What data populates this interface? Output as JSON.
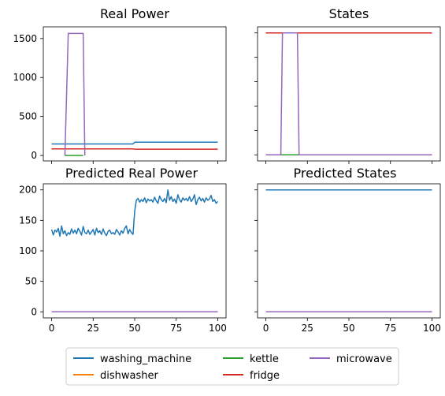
{
  "colors": {
    "washing_machine": "#1f77b4",
    "dishwasher": "#ff7f0e",
    "kettle": "#2ca02c",
    "fridge": "#d62728",
    "microwave": "#9467bd"
  },
  "legend": {
    "position": "bottom-center",
    "entries": [
      "washing_machine",
      "dishwasher",
      "kettle",
      "fridge",
      "microwave"
    ]
  },
  "chart_data": [
    {
      "id": "real_power",
      "type": "line",
      "title": "Real Power",
      "xlim": [
        -5,
        105
      ],
      "ylim": [
        -70,
        1650
      ],
      "xticks": [
        0,
        25,
        50,
        75,
        100
      ],
      "show_xtick_labels": false,
      "yticks": [
        0,
        500,
        1000,
        1500
      ],
      "show_ytick_labels": true,
      "grid": false,
      "series": [
        {
          "name": "washing_machine",
          "x": [
            0,
            49,
            50,
            100
          ],
          "y": [
            148,
            148,
            170,
            170
          ]
        },
        {
          "name": "kettle",
          "x": [
            8,
            19
          ],
          "y": [
            0,
            0
          ]
        },
        {
          "name": "fridge",
          "x": [
            0,
            49,
            50,
            100
          ],
          "y": [
            84,
            84,
            80,
            80
          ]
        },
        {
          "name": "microwave",
          "x": [
            8,
            10,
            19,
            20
          ],
          "y": [
            0,
            1565,
            1565,
            0
          ]
        }
      ]
    },
    {
      "id": "states",
      "type": "line",
      "title": "States",
      "xlim": [
        -5,
        105
      ],
      "ylim": [
        -0.05,
        1.05
      ],
      "xticks": [
        0,
        25,
        50,
        75,
        100
      ],
      "show_xtick_labels": false,
      "yticks": [
        0,
        0.2,
        0.4,
        0.6,
        0.8,
        1.0
      ],
      "show_ytick_labels": false,
      "grid": false,
      "series": [
        {
          "name": "kettle",
          "x": [
            0,
            100
          ],
          "y": [
            0,
            0
          ]
        },
        {
          "name": "fridge",
          "x": [
            0,
            100
          ],
          "y": [
            1,
            1
          ]
        },
        {
          "name": "microwave",
          "x": [
            0,
            9,
            10,
            19,
            20,
            100
          ],
          "y": [
            0,
            0,
            1,
            1,
            0,
            0
          ]
        }
      ]
    },
    {
      "id": "predicted_real_power",
      "type": "line",
      "title": "Predicted Real Power",
      "xlim": [
        -5,
        105
      ],
      "ylim": [
        -10,
        210
      ],
      "xticks": [
        0,
        25,
        50,
        75,
        100
      ],
      "show_xtick_labels": true,
      "yticks": [
        0,
        50,
        100,
        150,
        200
      ],
      "show_ytick_labels": true,
      "grid": false,
      "series": [
        {
          "name": "washing_machine",
          "x": [
            0,
            1,
            2,
            3,
            4,
            5,
            6,
            7,
            8,
            9,
            10,
            11,
            12,
            13,
            14,
            15,
            16,
            17,
            18,
            19,
            20,
            21,
            22,
            23,
            24,
            25,
            26,
            27,
            28,
            29,
            30,
            31,
            32,
            33,
            34,
            35,
            36,
            37,
            38,
            39,
            40,
            41,
            42,
            43,
            44,
            45,
            46,
            47,
            48,
            49,
            50,
            51,
            52,
            53,
            54,
            55,
            56,
            57,
            58,
            59,
            60,
            61,
            62,
            63,
            64,
            65,
            66,
            67,
            68,
            69,
            70,
            71,
            72,
            73,
            74,
            75,
            76,
            77,
            78,
            79,
            80,
            81,
            82,
            83,
            84,
            85,
            86,
            87,
            88,
            89,
            90,
            91,
            92,
            93,
            94,
            95,
            96,
            97,
            98,
            99,
            100
          ],
          "y": [
            135,
            126,
            134,
            131,
            137,
            124,
            141,
            128,
            133,
            125,
            130,
            127,
            136,
            129,
            134,
            128,
            137,
            132,
            126,
            140,
            130,
            128,
            134,
            127,
            131,
            135,
            126,
            137,
            130,
            133,
            127,
            136,
            129,
            125,
            132,
            134,
            128,
            130,
            127,
            135,
            131,
            126,
            133,
            129,
            137,
            141,
            128,
            135,
            130,
            127,
            165,
            183,
            186,
            180,
            184,
            181,
            187,
            179,
            185,
            182,
            184,
            180,
            188,
            182,
            178,
            190,
            184,
            181,
            186,
            179,
            200,
            183,
            189,
            181,
            185,
            178,
            192,
            184,
            180,
            187,
            183,
            186,
            182,
            189,
            181,
            185,
            192,
            176,
            184,
            188,
            182,
            186,
            180,
            187,
            183,
            185,
            191,
            181,
            184,
            178,
            181
          ]
        },
        {
          "name": "dishwasher",
          "x": [
            0,
            100
          ],
          "y": [
            0,
            0
          ]
        },
        {
          "name": "kettle",
          "x": [
            0,
            100
          ],
          "y": [
            0,
            0
          ]
        },
        {
          "name": "fridge",
          "x": [
            0,
            100
          ],
          "y": [
            0,
            0
          ]
        },
        {
          "name": "microwave",
          "x": [
            0,
            100
          ],
          "y": [
            0,
            0
          ]
        }
      ]
    },
    {
      "id": "predicted_states",
      "type": "line",
      "title": "Predicted States",
      "xlim": [
        -5,
        105
      ],
      "ylim": [
        -10,
        210
      ],
      "xticks": [
        0,
        25,
        50,
        75,
        100
      ],
      "show_xtick_labels": true,
      "yticks": [
        0,
        50,
        100,
        150,
        200
      ],
      "show_ytick_labels": false,
      "grid": false,
      "series": [
        {
          "name": "washing_machine",
          "x": [
            0,
            100
          ],
          "y": [
            200,
            200
          ]
        },
        {
          "name": "dishwasher",
          "x": [
            0,
            100
          ],
          "y": [
            0,
            0
          ]
        },
        {
          "name": "kettle",
          "x": [
            0,
            100
          ],
          "y": [
            0,
            0
          ]
        },
        {
          "name": "fridge",
          "x": [
            0,
            100
          ],
          "y": [
            0,
            0
          ]
        },
        {
          "name": "microwave",
          "x": [
            0,
            100
          ],
          "y": [
            0,
            0
          ]
        }
      ]
    }
  ]
}
